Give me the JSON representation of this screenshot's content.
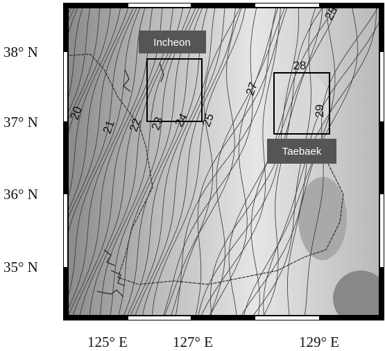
{
  "map": {
    "lat_labels": [
      "38° N",
      "37° N",
      "36° N",
      "35° N"
    ],
    "lon_labels": [
      "125° E",
      "127° E",
      "129° E"
    ],
    "regions": [
      {
        "label": "Incheon"
      },
      {
        "label": "Taebaek"
      }
    ],
    "contour_labels": [
      "20",
      "21",
      "22",
      "23",
      "24",
      "25",
      "27",
      "28",
      "29",
      "25"
    ]
  }
}
